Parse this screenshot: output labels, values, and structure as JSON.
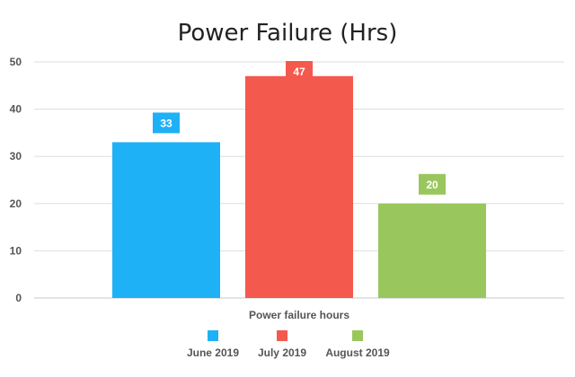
{
  "chart_data": {
    "type": "bar",
    "title": "Power Failure (Hrs)",
    "xlabel": "Power failure hours",
    "ylabel": "",
    "ylim": [
      0,
      50
    ],
    "yticks": [
      0,
      10,
      20,
      30,
      40,
      50
    ],
    "grid": true,
    "legend_position": "bottom",
    "series": [
      {
        "name": "June 2019",
        "value": 33,
        "color": "#1eb1f5"
      },
      {
        "name": "July 2019",
        "value": 47,
        "color": "#f4594d"
      },
      {
        "name": "August 2019",
        "value": 20,
        "color": "#99c75d"
      }
    ]
  }
}
